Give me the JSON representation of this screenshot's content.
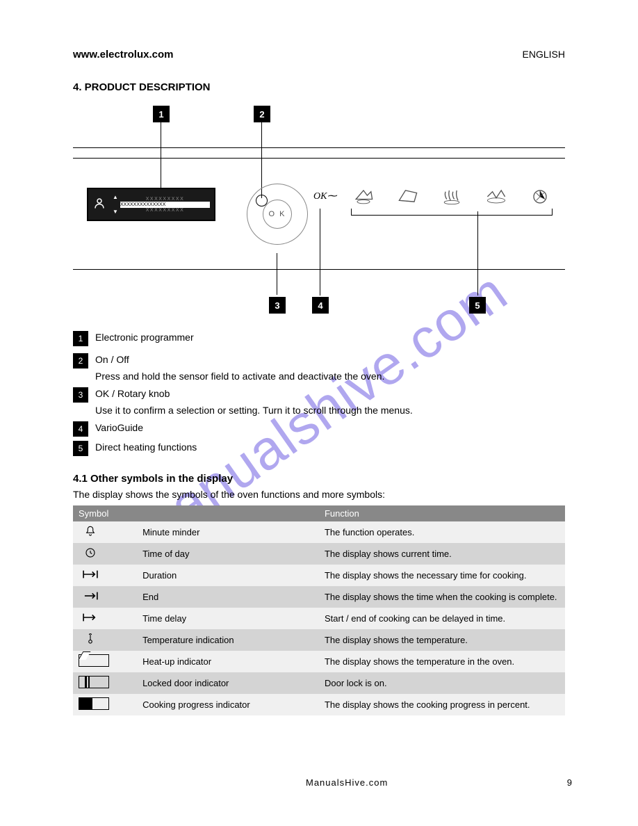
{
  "header": {
    "title": "www.electrolux.com",
    "subtitle": "ENGLISH"
  },
  "section_title": "4. PRODUCT DESCRIPTION",
  "diagram": {
    "callouts": {
      "1": "1",
      "2": "2",
      "3": "3",
      "4": "4",
      "5": "5"
    },
    "ok_label": "O K",
    "v_label": "ΟΚ"
  },
  "legend": [
    {
      "n": "1",
      "text": "Electronic programmer"
    },
    {
      "n": "2",
      "text": "On / Off",
      "note": "Press and hold the sensor field to activate and deactivate the oven."
    },
    {
      "n": "3",
      "text": "OK / Rotary knob",
      "note": "Use it to confirm a selection or setting. Turn it to scroll through the menus."
    },
    {
      "n": "4",
      "text": "VarioGuide"
    },
    {
      "n": "5",
      "text": "Direct heating functions"
    }
  ],
  "symbols": {
    "title": "4.1 Other symbols in the display",
    "intro": "The display shows the symbols of the oven functions and more symbols:",
    "table_headers": [
      "Symbol",
      "",
      "Function"
    ],
    "rows": [
      {
        "icon": "bell",
        "label": "Minute minder",
        "func": "The function operates."
      },
      {
        "icon": "clock",
        "label": "Time of day",
        "func": "The display shows current time."
      },
      {
        "icon": "duration",
        "label": "Duration",
        "func": "The display shows the necessary time for cooking."
      },
      {
        "icon": "end",
        "label": "End",
        "func": "The display shows the time when the cooking is complete."
      },
      {
        "icon": "delay",
        "label": "Time delay",
        "func": "Start / end of cooking can be delayed in time."
      },
      {
        "icon": "temp",
        "label": "Temperature indication",
        "func": "The display shows the temperature."
      },
      {
        "icon": "heat",
        "label": "Heat-up indicator",
        "func": "The display shows the temperature in the oven."
      },
      {
        "icon": "door",
        "label": "Locked door indicator",
        "func": "Door lock is on."
      },
      {
        "icon": "prog",
        "label": "Cooking progress indicator",
        "func": "The display shows the cooking progress in percent."
      }
    ]
  },
  "footer": {
    "site": "ManualsHive.com",
    "page": "9"
  },
  "watermark": "manualshive.com"
}
